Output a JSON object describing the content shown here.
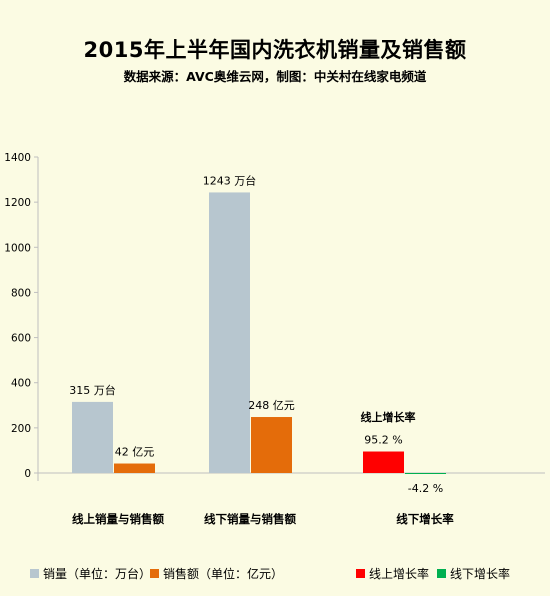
{
  "chart_data": {
    "type": "bar",
    "title": "2015年上半年国内洗衣机销量及销售额",
    "subtitle": "数据来源：AVC奥维云网，制图：中关村在线家电频道",
    "ylim": [
      -100,
      1400
    ],
    "yticks": [
      "1400",
      "1200",
      "1000",
      "800",
      "600",
      "400",
      "200",
      "0"
    ],
    "categories": [
      "线上销量与销售额",
      "线下销量与销售额",
      "线下增长率"
    ],
    "series": [
      {
        "name": "销量（单位：万台）",
        "color": "#b7c6cf",
        "values": [
          315,
          1243,
          null
        ],
        "labels": [
          "315 万台",
          "1243 万台",
          ""
        ]
      },
      {
        "name": "销售额（单位：亿元）",
        "color": "#e46c0a",
        "values": [
          42,
          248,
          null
        ],
        "labels": [
          "42 亿元",
          "248 亿元",
          ""
        ]
      },
      {
        "name": "线上增长率",
        "color": "#ff0000",
        "values": [
          null,
          null,
          95.2
        ],
        "labels": [
          "",
          "",
          "95.2 %"
        ]
      },
      {
        "name": "线下增长率",
        "color": "#00b050",
        "values": [
          null,
          null,
          -4.2
        ],
        "labels": [
          "",
          "",
          "-4.2 %"
        ]
      }
    ],
    "annotations": [
      "线上增长率"
    ],
    "legend": "bottom",
    "grid": false
  }
}
